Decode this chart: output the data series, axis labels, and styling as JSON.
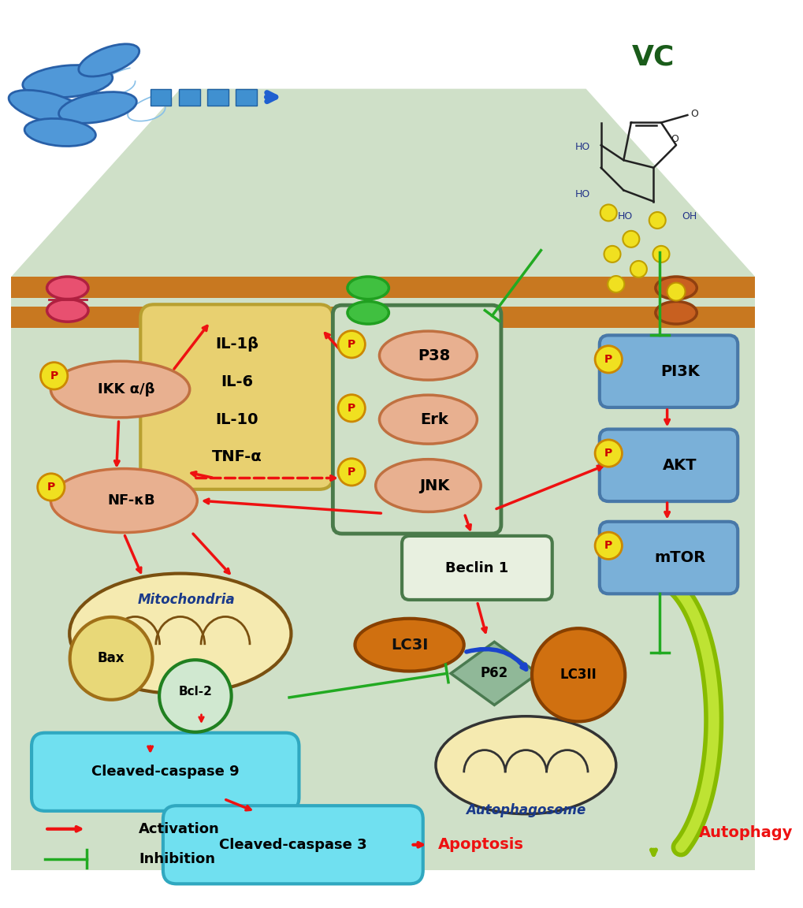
{
  "bg_color": "#cfe0c8",
  "white_bg": "#ffffff",
  "title_vc_color": "#1a5c1a",
  "cytokine_box_color": "#e8d070",
  "cytokine_border": "#b8a030",
  "cytokines": [
    "IL-1β",
    "IL-6",
    "IL-10",
    "TNF-α"
  ],
  "mapk_box_color": "#4a7a4a",
  "mapk_protein_color": "#e8b090",
  "pi3k_box_color": "#7ab0d8",
  "p_circle_color": "#f0e020",
  "p_text_color": "#cc0000",
  "nfkb_color": "#e8b090",
  "nfkb_border": "#c87040",
  "lc3_color": "#d07010",
  "caspase_box_color": "#70e0f0",
  "caspase_border": "#30a8c0",
  "beclin_box_color": "#e8f0e0",
  "beclin_border": "#4a7a4a",
  "p62_color": "#90b898",
  "red_arrow": "#ee1111",
  "green_inhibit": "#22aa22",
  "blue_arrow": "#1a44cc",
  "membrane_color": "#c87820",
  "mito_fill": "#f5eab0",
  "mito_border": "#7a5010"
}
